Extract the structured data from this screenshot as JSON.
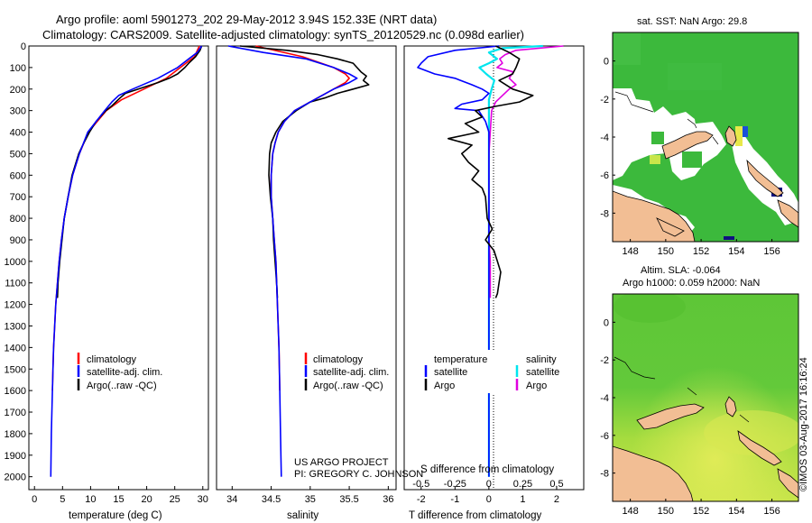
{
  "title": {
    "line1": "Argo profile: aoml 5901273_202 29-May-2012 3.94S 152.33E (NRT data)",
    "line2": "Climatology: CARS2009. Satellite-adjusted climatology: synTS_20120529.nc (0.098d earlier)"
  },
  "colors": {
    "climatology": "#ff0000",
    "satellite": "#0000ff",
    "argo": "#000000",
    "sat_salinity": "#00e5ee",
    "argo_salinity": "#e000e0",
    "land": "#f2be94"
  },
  "legend": {
    "climatology": "climatology",
    "satellite": "satellite-adj. clim.",
    "argo": "Argo(..raw -QC)",
    "temp_header": "temperature",
    "sal_header": "salinity",
    "sat_short": "satellite",
    "argo_short": "Argo"
  },
  "credits": {
    "project": "US ARGO PROJECT",
    "pi": "PI: GREGORY C. JOHNSON"
  },
  "timestamp": "©IMOS 03-Aug-2017 16:16:24",
  "chart_data": [
    {
      "type": "line",
      "id": "temperature",
      "xlabel": "temperature (deg C)",
      "ylabel": "",
      "xlim": [
        -1,
        31
      ],
      "ylim": [
        2060,
        0
      ],
      "xticks": [
        0,
        5,
        10,
        15,
        20,
        25,
        30
      ],
      "yticks": [
        0,
        100,
        200,
        300,
        400,
        500,
        600,
        700,
        800,
        900,
        1000,
        1100,
        1200,
        1300,
        1400,
        1500,
        1600,
        1700,
        1800,
        1900,
        2000
      ],
      "series": [
        {
          "name": "climatology",
          "depth": [
            0,
            50,
            100,
            150,
            200,
            250,
            300,
            400,
            500,
            600,
            700,
            800,
            900,
            1000,
            1100,
            1200,
            1300,
            1400,
            1500,
            1600
          ],
          "values": [
            29.4,
            28.5,
            26.0,
            23.5,
            19.5,
            15.5,
            12.8,
            9.6,
            8.0,
            6.8,
            6.0,
            5.3,
            4.8,
            4.4,
            4.1,
            3.8,
            3.6,
            3.4,
            3.3,
            3.2
          ]
        },
        {
          "name": "satellite",
          "depth": [
            0,
            30,
            60,
            100,
            150,
            200,
            230,
            260,
            300,
            400,
            500,
            600,
            700,
            800,
            900,
            1000,
            1100,
            1200,
            1300,
            1400,
            1500,
            1600,
            1700,
            1800,
            1900,
            2000
          ],
          "values": [
            29.8,
            29.0,
            27.5,
            25.5,
            22.0,
            17.5,
            15.0,
            13.8,
            12.5,
            9.5,
            8.0,
            6.8,
            6.0,
            5.3,
            4.8,
            4.4,
            4.1,
            3.8,
            3.6,
            3.4,
            3.3,
            3.2,
            3.1,
            3.0,
            2.95,
            2.9
          ]
        },
        {
          "name": "Argo",
          "depth": [
            0,
            20,
            50,
            80,
            100,
            130,
            150,
            170,
            200,
            220,
            240,
            260,
            280,
            300,
            350,
            400,
            450,
            500,
            600,
            700,
            800,
            900,
            1000,
            1100,
            1170
          ],
          "values": [
            29.8,
            29.5,
            28.7,
            27.5,
            26.8,
            25.5,
            24.0,
            22.0,
            18.5,
            16.2,
            15.3,
            14.5,
            13.7,
            12.7,
            11.0,
            9.8,
            8.8,
            7.9,
            6.7,
            6.0,
            5.3,
            4.9,
            4.5,
            4.2,
            4.1
          ]
        }
      ]
    },
    {
      "type": "line",
      "id": "salinity",
      "xlabel": "salinity",
      "ylabel": "",
      "xlim": [
        33.8,
        36.1
      ],
      "ylim": [
        2060,
        0
      ],
      "xticks": [
        34,
        34.5,
        35,
        35.5,
        36
      ],
      "series": [
        {
          "name": "climatology",
          "depth": [
            0,
            50,
            100,
            130,
            150,
            170,
            200,
            250,
            300,
            350,
            400,
            450,
            500,
            600,
            700,
            800,
            900,
            1000,
            1200,
            1400,
            1600
          ],
          "values": [
            34.3,
            34.9,
            35.3,
            35.45,
            35.5,
            35.45,
            35.3,
            35.05,
            34.8,
            34.67,
            34.59,
            34.55,
            34.52,
            34.5,
            34.5,
            34.52,
            34.54,
            34.56,
            34.58,
            34.6,
            34.61
          ]
        },
        {
          "name": "satellite",
          "depth": [
            0,
            30,
            60,
            100,
            130,
            150,
            170,
            200,
            250,
            300,
            350,
            400,
            450,
            500,
            600,
            700,
            800,
            900,
            1000,
            1200,
            1400,
            1600,
            1800,
            2000
          ],
          "values": [
            33.95,
            34.4,
            34.95,
            35.3,
            35.5,
            35.6,
            35.5,
            35.3,
            35.05,
            34.8,
            34.67,
            34.59,
            34.55,
            34.52,
            34.5,
            34.5,
            34.52,
            34.54,
            34.56,
            34.58,
            34.6,
            34.61,
            34.62,
            34.63
          ]
        },
        {
          "name": "Argo",
          "depth": [
            0,
            20,
            40,
            60,
            80,
            100,
            120,
            140,
            160,
            180,
            200,
            220,
            240,
            260,
            300,
            350,
            400,
            450,
            500,
            600,
            700,
            800,
            900,
            1000,
            1100,
            1170
          ],
          "values": [
            34.1,
            34.7,
            35.1,
            35.35,
            35.55,
            35.6,
            35.65,
            35.72,
            35.68,
            35.75,
            35.55,
            35.35,
            35.2,
            35.0,
            34.82,
            34.65,
            34.56,
            34.5,
            34.48,
            34.47,
            34.49,
            34.52,
            34.53,
            34.55,
            34.57,
            34.58
          ]
        }
      ]
    },
    {
      "type": "line",
      "id": "differences",
      "xlabel_top": "S difference from climatology",
      "xlabel": "T difference from climatology",
      "ylabel": "",
      "t_xlim": [
        -2.5,
        2.8
      ],
      "t_xticks": [
        -2,
        -1,
        0,
        1,
        2
      ],
      "s_xticks": [
        -0.5,
        -0.25,
        0,
        0.25,
        0.5
      ],
      "s_xlim": [
        -0.625,
        0.7
      ],
      "ylim": [
        2060,
        0
      ],
      "series": [
        {
          "name": "T satellite",
          "depth": [
            0,
            20,
            50,
            80,
            100,
            130,
            150,
            180,
            200,
            220,
            250,
            270,
            290,
            300,
            350,
            400,
            500,
            600,
            700,
            800,
            900,
            1000,
            1200,
            1400,
            1600,
            1800,
            2000
          ],
          "values": [
            0.3,
            -1.0,
            -1.8,
            -2.0,
            -2.1,
            -1.6,
            -1.0,
            -0.5,
            -0.2,
            0.0,
            -0.2,
            -0.8,
            -1.0,
            -0.3,
            -0.1,
            0.0,
            0.0,
            0.0,
            0.0,
            0.0,
            0.0,
            0.0,
            0.0,
            0.0,
            0.0,
            0.0,
            0.0
          ]
        },
        {
          "name": "T Argo",
          "depth": [
            0,
            30,
            60,
            100,
            130,
            160,
            200,
            230,
            260,
            280,
            300,
            330,
            360,
            400,
            430,
            460,
            500,
            540,
            580,
            620,
            660,
            700,
            800,
            850,
            900,
            950,
            1000,
            1050,
            1100,
            1150,
            1170
          ],
          "values": [
            0.2,
            0.6,
            0.9,
            0.8,
            0.7,
            0.3,
            0.7,
            1.3,
            0.9,
            0.2,
            -0.4,
            -0.2,
            -0.7,
            -0.3,
            -1.2,
            -0.5,
            -0.8,
            -0.6,
            -0.3,
            -0.5,
            -0.2,
            -0.1,
            -0.05,
            0.1,
            -0.1,
            0.15,
            0.25,
            0.35,
            0.3,
            0.25,
            0.2
          ]
        },
        {
          "name": "S satellite",
          "depth": [
            0,
            10,
            30,
            60,
            80,
            100,
            130,
            160,
            200,
            250,
            300,
            400,
            600,
            800,
            1000,
            1200,
            1400,
            1600,
            1800,
            2000
          ],
          "values": [
            0.4,
            0.1,
            0.0,
            0.06,
            0.0,
            -0.07,
            -0.02,
            0.04,
            0.02,
            0.0,
            0.0,
            0.0,
            0.0,
            0.0,
            0.0,
            0.0,
            0.0,
            0.0,
            0.0,
            0.0
          ]
        },
        {
          "name": "S Argo",
          "depth": [
            0,
            20,
            40,
            60,
            80,
            100,
            120,
            150,
            180,
            200,
            230,
            260,
            300,
            400,
            500,
            600,
            700,
            800,
            900,
            1000,
            1100,
            1170
          ],
          "values": [
            0.55,
            0.2,
            0.12,
            0.08,
            0.1,
            0.06,
            0.18,
            0.15,
            0.2,
            0.15,
            0.1,
            0.05,
            0.02,
            0.01,
            0.0,
            0.0,
            0.0,
            0.0,
            0.0,
            0.01,
            0.01,
            0.01
          ]
        }
      ]
    },
    {
      "type": "heatmap",
      "id": "sst_map",
      "title": "sat. SST: NaN  Argo: 29.8",
      "xticks": [
        148,
        150,
        152,
        154,
        156
      ],
      "yticks": [
        0,
        -2,
        -4,
        -6,
        -8
      ],
      "xlim": [
        147,
        157.5
      ],
      "ylim": [
        -9.5,
        1.5
      ]
    },
    {
      "type": "heatmap",
      "id": "sla_map",
      "title_line1": "Altim. SLA: -0.064",
      "title_line2": "Argo h1000: 0.059 h2000: NaN",
      "xticks": [
        148,
        150,
        152,
        154,
        156
      ],
      "yticks": [
        0,
        -2,
        -4,
        -6,
        -8
      ],
      "xlim": [
        147,
        157.5
      ],
      "ylim": [
        -9.5,
        1.5
      ]
    }
  ]
}
